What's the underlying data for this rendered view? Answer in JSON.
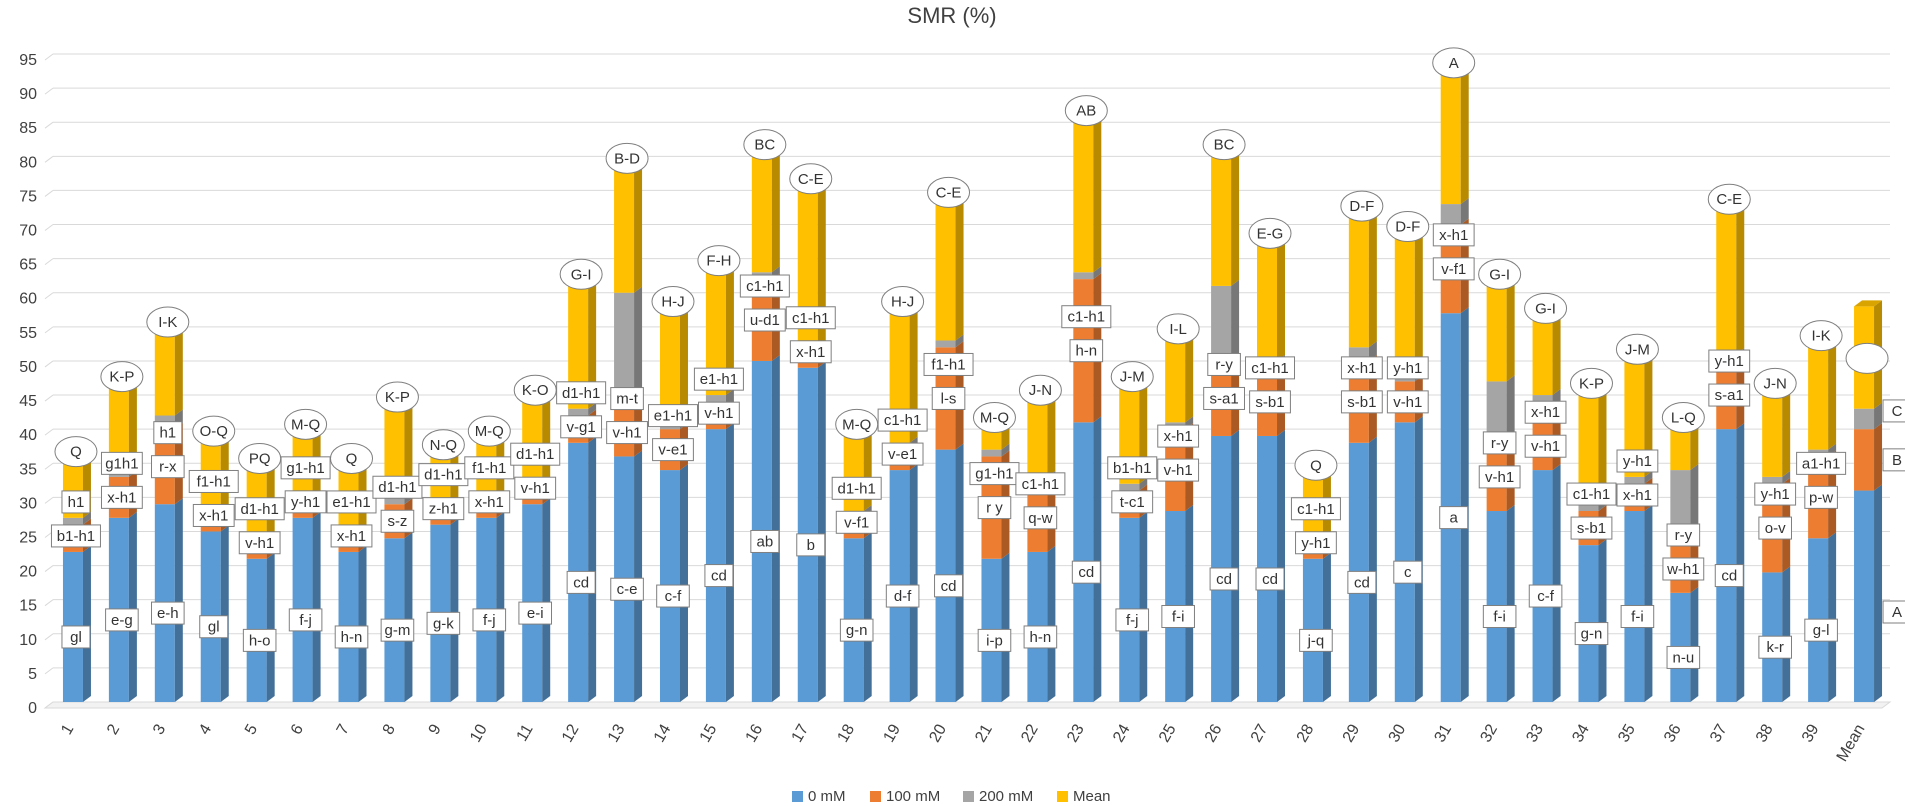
{
  "chart_data": {
    "type": "bar",
    "stacked": true,
    "title": "SMR (%)",
    "xlabel": "",
    "ylabel": "",
    "ylim": [
      0,
      95
    ],
    "yticks": [
      0,
      5,
      10,
      15,
      20,
      25,
      30,
      35,
      40,
      45,
      50,
      55,
      60,
      65,
      70,
      75,
      80,
      85,
      90,
      95
    ],
    "grid": true,
    "legend_position": "bottom",
    "categories": [
      "1",
      "2",
      "3",
      "4",
      "5",
      "6",
      "7",
      "8",
      "9",
      "10",
      "11",
      "12",
      "13",
      "14",
      "15",
      "16",
      "17",
      "18",
      "19",
      "20",
      "21",
      "22",
      "23",
      "24",
      "25",
      "26",
      "27",
      "28",
      "29",
      "30",
      "31",
      "32",
      "33",
      "34",
      "35",
      "36",
      "37",
      "38",
      "39",
      "Mean"
    ],
    "series": [
      {
        "name": "0 mM",
        "color": "#5B9BD5",
        "values": [
          22,
          27,
          29,
          25,
          21,
          27,
          22,
          24,
          26,
          27,
          29,
          38,
          36,
          34,
          40,
          50,
          49,
          24,
          34,
          37,
          21,
          22,
          41,
          27,
          28,
          39,
          39,
          21,
          38,
          41,
          57,
          28,
          34,
          23,
          28,
          16,
          40,
          19,
          24,
          31
        ]
      },
      {
        "name": "100 mM",
        "color": "#ED7D31",
        "values": [
          4,
          6,
          11,
          2,
          2,
          2,
          2,
          5,
          1,
          2,
          2,
          4,
          7,
          6,
          3,
          12,
          2,
          3,
          3,
          15,
          15,
          10,
          21,
          4,
          12,
          11,
          10,
          2,
          12,
          6,
          13,
          10,
          7,
          5,
          4,
          7,
          10,
          13,
          12,
          9
        ]
      },
      {
        "name": "200 mM",
        "color": "#A5A5A5",
        "values": [
          1,
          1,
          2,
          1,
          1,
          1,
          1,
          1,
          1,
          1,
          1,
          1,
          17,
          1,
          2,
          1,
          1,
          1,
          1,
          1,
          1,
          1,
          1,
          1,
          1,
          11,
          1,
          1,
          2,
          1,
          3,
          9,
          4,
          1,
          1,
          11,
          1,
          1,
          1,
          3
        ]
      },
      {
        "name": "Mean",
        "color": "#FFC000",
        "values": [
          10,
          14,
          14,
          12,
          12,
          11,
          11,
          15,
          10,
          10,
          14,
          20,
          20,
          18,
          20,
          19,
          25,
          13,
          21,
          22,
          5,
          13,
          24,
          16,
          14,
          21,
          19,
          11,
          21,
          22,
          21,
          16,
          13,
          18,
          19,
          8,
          23,
          14,
          17,
          15
        ]
      }
    ],
    "annotations": {
      "zero_mM": [
        "gl",
        "e-g",
        "e-h",
        "gl",
        "h-o",
        "f-j",
        "h-n",
        "g-m",
        "g-k",
        "f-j",
        "e-i",
        "cd",
        "c-e",
        "c-f",
        "cd",
        "ab",
        "b",
        "g-n",
        "d-f",
        "cd",
        "i-p",
        "h-n",
        "cd",
        "f-j",
        "f-i",
        "cd",
        "cd",
        "j-q",
        "cd",
        "c",
        "a",
        "f-i",
        "c-f",
        "g-n",
        "f-i",
        "n-u",
        "cd",
        "k-r",
        "g-l",
        "A"
      ],
      "hundred_mM": [
        "b1-h1",
        "x-h1",
        "r-x",
        "x-h1",
        "v-h1",
        "y-h1",
        "x-h1",
        "s-z",
        "z-h1",
        "x-h1",
        "v-h1",
        "v-g1",
        "v-h1",
        "v-e1",
        "v-h1",
        "u-d1",
        "x-h1",
        "v-f1",
        "v-e1",
        "l-s",
        "r y",
        "q-w",
        "h-n",
        "t-c1",
        "v-h1",
        "s-a1",
        "s-b1",
        "y-h1",
        "s-b1",
        "v-h1",
        "v-f1",
        "v-h1",
        "v-h1",
        "s-b1",
        "x-h1",
        "w-h1",
        "s-a1",
        "o-v",
        "p-w",
        "B"
      ],
      "two_hundred_mM": [
        "h1",
        "g1h1",
        "h1",
        "f1-h1",
        "d1-h1",
        "g1-h1",
        "e1-h1",
        "d1-h1",
        "d1-h1",
        "f1-h1",
        "d1-h1",
        "d1-h1",
        "m-t",
        "e1-h1",
        "e1-h1",
        "c1-h1",
        "c1-h1",
        "d1-h1",
        "c1-h1",
        "f1-h1",
        "g1-h1",
        "c1-h1",
        "c1-h1",
        "b1-h1",
        "x-h1",
        "r-y",
        "c1-h1",
        "c1-h1",
        "x-h1",
        "y-h1",
        "x-h1",
        "r-y",
        "x-h1",
        "c1-h1",
        "y-h1",
        "r-y",
        "y-h1",
        "y-h1",
        "a1-h1",
        "C"
      ],
      "mean": [
        "Q",
        "K-P",
        "I-K",
        "O-Q",
        "PQ",
        "M-Q",
        "Q",
        "K-P",
        "N-Q",
        "M-Q",
        "K-O",
        "G-I",
        "B-D",
        "H-J",
        "F-H",
        "BC",
        "C-E",
        "M-Q",
        "H-J",
        "C-E",
        "M-Q",
        "J-N",
        "AB",
        "J-M",
        "I-L",
        "BC",
        "E-G",
        "Q",
        "D-F",
        "D-F",
        "A",
        "G-I",
        "G-I",
        "K-P",
        "J-M",
        "L-Q",
        "C-E",
        "J-N",
        "I-K",
        ""
      ]
    }
  }
}
